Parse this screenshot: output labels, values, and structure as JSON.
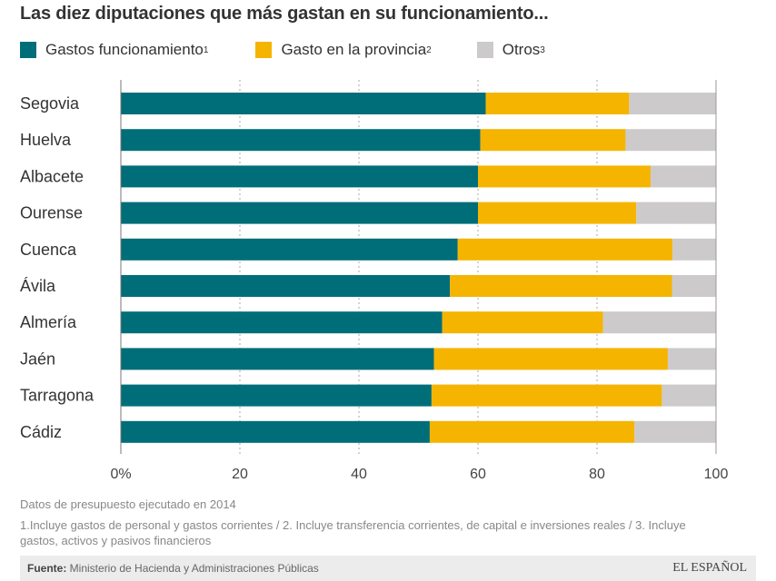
{
  "chart_data": {
    "type": "bar",
    "orientation": "horizontal",
    "stacked": true,
    "title": "Las diez diputaciones que más gastan en su funcionamiento...",
    "categories": [
      "Segovia",
      "Huelva",
      "Albacete",
      "Ourense",
      "Cuenca",
      "Ávila",
      "Almería",
      "Jaén",
      "Tarragona",
      "Cádiz"
    ],
    "series": [
      {
        "name": "Gastos funcionamiento",
        "sup": "1",
        "color": "#006e78",
        "values": [
          61.3,
          60.4,
          60.0,
          60.0,
          56.6,
          55.3,
          54.0,
          52.6,
          52.2,
          51.9
        ]
      },
      {
        "name": "Gasto en la provincia",
        "sup": "2",
        "color": "#f5b400",
        "values": [
          24.1,
          24.4,
          29.0,
          26.6,
          36.1,
          37.3,
          27.0,
          39.3,
          38.7,
          34.4
        ]
      },
      {
        "name": "Otros",
        "sup": "3",
        "color": "#cdcacb",
        "values": [
          14.6,
          15.2,
          11.0,
          13.4,
          7.3,
          7.4,
          19.0,
          8.1,
          9.1,
          13.7
        ]
      }
    ],
    "xlim": [
      0,
      100
    ],
    "xticks": [
      "0%",
      "20",
      "40",
      "60",
      "80",
      "100"
    ],
    "grid": "vertical dotted",
    "legend": "top"
  },
  "notes": {
    "line1": "Datos de presupuesto ejecutado en 2014",
    "line2": "1.Incluye gastos de personal y gastos corrientes / 2. Incluye transferencia corrientes, de capital e inversiones reales / 3. Incluye gastos, activos y pasivos financieros"
  },
  "footer": {
    "source_label": "Fuente:",
    "source": " Ministerio de Hacienda y Administraciones Públicas",
    "logo": "EL ESPAÑOL"
  }
}
